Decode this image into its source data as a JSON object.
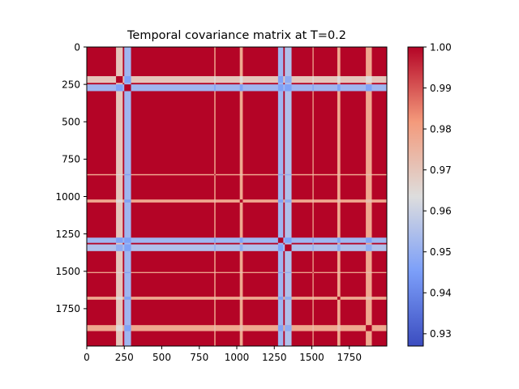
{
  "chart_data": {
    "type": "heatmap",
    "title": "Temporal covariance matrix at T=0.2",
    "colormap": "coolwarm",
    "grid": false,
    "x_range": [
      0,
      2000
    ],
    "y_range": [
      2000,
      0
    ],
    "x_ticks": [
      "0",
      "250",
      "500",
      "750",
      "1000",
      "1250",
      "1500",
      "1750"
    ],
    "y_ticks": [
      "0",
      "250",
      "500",
      "750",
      "1000",
      "1250",
      "1500",
      "1750"
    ],
    "colorbar": {
      "range": [
        0.927,
        1.0
      ],
      "ticks": [
        "0.93",
        "0.94",
        "0.95",
        "0.96",
        "0.97",
        "0.98",
        "0.99",
        "1.00"
      ]
    },
    "background_value": 1.0,
    "bands": [
      {
        "start": 195,
        "end": 240,
        "value": 0.97
      },
      {
        "start": 250,
        "end": 295,
        "value": 0.952
      },
      {
        "start": 850,
        "end": 858,
        "value": 0.978
      },
      {
        "start": 1020,
        "end": 1040,
        "value": 0.978
      },
      {
        "start": 1275,
        "end": 1310,
        "value": 0.952
      },
      {
        "start": 1320,
        "end": 1365,
        "value": 0.955
      },
      {
        "start": 1505,
        "end": 1512,
        "value": 0.978
      },
      {
        "start": 1670,
        "end": 1690,
        "value": 0.978
      },
      {
        "start": 1860,
        "end": 1900,
        "value": 0.978
      }
    ]
  }
}
